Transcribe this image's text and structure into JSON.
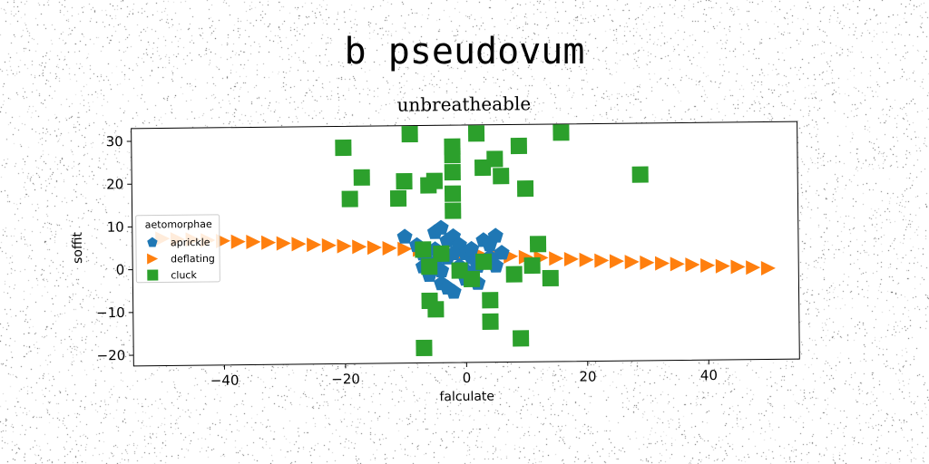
{
  "suptitle": "b pseudovum",
  "chart_data": {
    "type": "scatter",
    "title": "unbreatheable",
    "xlabel": "falculate",
    "ylabel": "soffit",
    "xlim": [
      -55,
      55
    ],
    "ylim": [
      -22.5,
      33
    ],
    "xticks": [
      -40,
      -20,
      0,
      20,
      40
    ],
    "yticks": [
      -20,
      -10,
      0,
      10,
      20,
      30
    ],
    "xtick_labels": [
      "−40",
      "−20",
      "0",
      "20",
      "40"
    ],
    "ytick_labels": [
      "−20",
      "−10",
      "0",
      "10",
      "20",
      "30"
    ],
    "grid": false,
    "legend": {
      "title": "aetomorphae",
      "position": "center-left"
    },
    "colors": {
      "aprickle": "#1f77b4",
      "deflating": "#ff7f0e",
      "cluck": "#2ca02c"
    },
    "series": [
      {
        "name": "aprickle",
        "marker": "pentagon",
        "x": [
          -10,
          -8,
          -7,
          -6,
          -5,
          -4,
          -3,
          -2,
          -1,
          0,
          1,
          2,
          3,
          4,
          5,
          6,
          -6,
          -4,
          -2,
          0,
          2,
          4,
          -5,
          -3,
          -1,
          1,
          3,
          -7,
          -4,
          -2,
          0,
          2,
          5,
          -3,
          1,
          4,
          -5,
          -1
        ],
        "y": [
          7,
          5,
          3,
          1,
          8,
          9,
          6,
          7,
          5,
          3,
          2,
          1,
          6,
          5,
          7,
          3,
          -2,
          -4,
          -6,
          -1,
          0,
          2,
          4,
          2,
          0,
          -2,
          1,
          0,
          -1,
          3,
          -3,
          -4,
          0,
          -5,
          4,
          2,
          1,
          -1
        ]
      },
      {
        "name": "deflating",
        "marker": "triangle-right",
        "x": [
          -50,
          -47.5,
          -45,
          -42.5,
          -40,
          -37.5,
          -35,
          -32.5,
          -30,
          -27.5,
          -25,
          -22.5,
          -20,
          -17.5,
          -15,
          -12.5,
          -10,
          -7.5,
          -5,
          -2.5,
          0,
          2.5,
          5,
          7.5,
          10,
          12.5,
          15,
          17.5,
          20,
          22.5,
          25,
          27.5,
          30,
          32.5,
          35,
          37.5,
          40,
          42.5,
          45,
          47.5,
          50
        ],
        "y": [
          7.2,
          7.0,
          6.9,
          6.7,
          6.5,
          6.3,
          6.2,
          6.0,
          5.8,
          5.6,
          5.4,
          5.2,
          5.0,
          4.8,
          4.6,
          4.4,
          4.2,
          4.0,
          3.7,
          3.4,
          3.0,
          2.7,
          2.4,
          2.2,
          2.0,
          1.8,
          1.6,
          1.4,
          1.2,
          1.0,
          0.8,
          0.6,
          0.4,
          0.2,
          0.0,
          -0.2,
          -0.4,
          -0.6,
          -0.8,
          -1.0,
          -1.2
        ]
      },
      {
        "name": "cluck",
        "marker": "square",
        "x": [
          -20,
          -19,
          -17,
          -11,
          -10,
          -9,
          -7,
          -6,
          -5,
          -2,
          -2,
          -2,
          -2,
          -2,
          2,
          3,
          4,
          5,
          6,
          9,
          10,
          29,
          16,
          12,
          11,
          14,
          8,
          9,
          4,
          3,
          -6,
          -5,
          -4,
          -7,
          -6,
          -1,
          1
        ],
        "y": [
          28,
          16,
          21,
          16,
          20,
          31,
          -19,
          19,
          20,
          28,
          26,
          22,
          17,
          13,
          31,
          23,
          -13,
          25,
          21,
          28,
          18,
          21,
          31,
          5,
          0,
          -3,
          -2,
          -17,
          -8,
          1,
          -8,
          -10,
          3,
          4,
          0,
          -1,
          -3
        ]
      }
    ]
  }
}
